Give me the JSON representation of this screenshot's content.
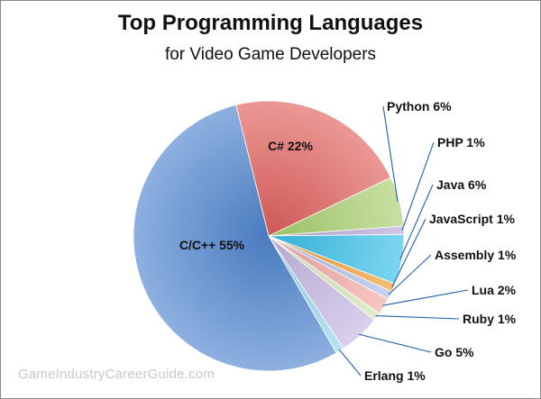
{
  "title": "Top Programming Languages",
  "subtitle": "for Video Game Developers",
  "watermark": "GameIndustryCareerGuide.com",
  "chart_data": {
    "type": "pie",
    "title": "Top Programming Languages",
    "subtitle": "for Video Game Developers",
    "slices": [
      {
        "name": "C#",
        "value": 22,
        "label": "C# 22%",
        "color": "#e0605c"
      },
      {
        "name": "Python",
        "value": 6,
        "label": "Python 6%",
        "color": "#a9d06e"
      },
      {
        "name": "PHP",
        "value": 1,
        "label": "PHP 1%",
        "color": "#b9a6d8"
      },
      {
        "name": "Java",
        "value": 6,
        "label": "Java 6%",
        "color": "#35bfe8"
      },
      {
        "name": "JavaScript",
        "value": 1,
        "label": "JavaScript 1%",
        "color": "#f39a2e"
      },
      {
        "name": "Assembly",
        "value": 1,
        "label": "Assembly 1%",
        "color": "#a9bce8"
      },
      {
        "name": "Lua",
        "value": 2,
        "label": "Lua 2%",
        "color": "#f2a7a3"
      },
      {
        "name": "Ruby",
        "value": 1,
        "label": "Ruby 1%",
        "color": "#cfe3b2"
      },
      {
        "name": "Go",
        "value": 5,
        "label": "Go 5%",
        "color": "#c5b6e1"
      },
      {
        "name": "Erlang",
        "value": 1,
        "label": "Erlang 1%",
        "color": "#8fd6ee"
      },
      {
        "name": "C/C++",
        "value": 55,
        "label": "C/C++ 55%",
        "color": "#4f86cf"
      }
    ],
    "legend": "none",
    "label_placement": "inside for C# and C/C++, outside with leader lines for the rest"
  }
}
